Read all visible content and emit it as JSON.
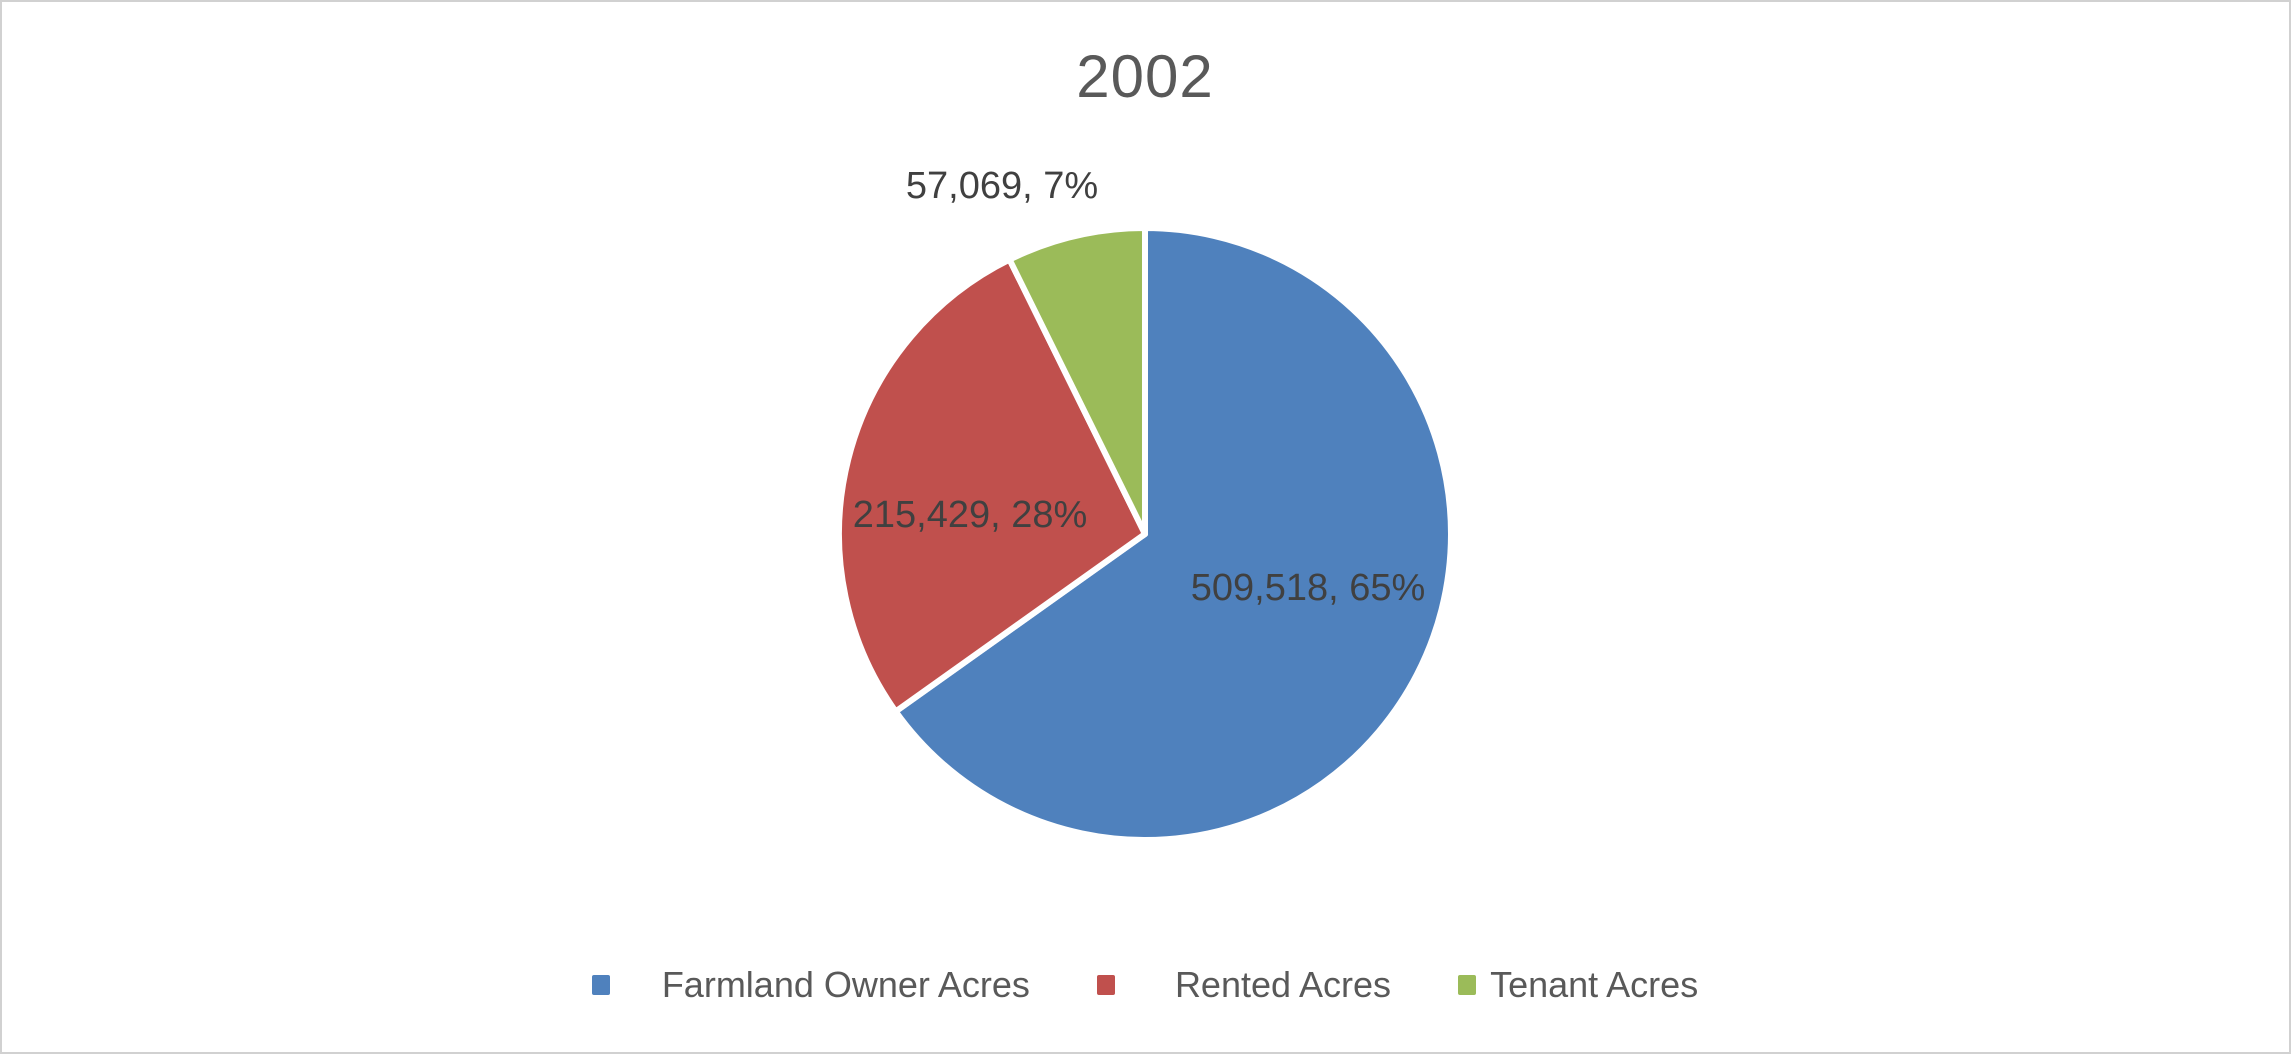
{
  "window": {
    "background_color": "#ffffff",
    "border_color": "#d1d1d1"
  },
  "chart_data": {
    "type": "pie",
    "title": "2002",
    "title_color": "#595959",
    "label_color": "#404040",
    "legend_text_color": "#595959",
    "start_angle_deg": 0,
    "direction": "clockwise",
    "legend_position": "bottom",
    "slice_border_color": "#ffffff",
    "slices": [
      {
        "name": "Farmland Owner Acres",
        "value": 509518,
        "pct": 65,
        "data_label": "509,518, 65%",
        "color": "#4F81BD"
      },
      {
        "name": "Rented Acres",
        "value": 215429,
        "pct": 28,
        "data_label": "215,429, 28%",
        "color": "#C0504D"
      },
      {
        "name": "Tenant Acres",
        "value": 57069,
        "pct": 7,
        "data_label": "57,069, 7%",
        "color": "#9BBB59"
      }
    ]
  }
}
